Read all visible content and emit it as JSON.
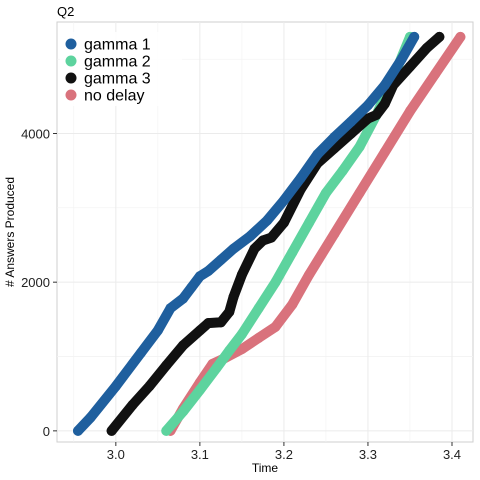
{
  "chart_data": {
    "type": "line",
    "title": "Q2",
    "xlabel": "Time",
    "ylabel": "# Answers Produced",
    "xlim": [
      2.93,
      3.425
    ],
    "ylim": [
      -150,
      5500
    ],
    "xticks": [
      3.0,
      3.1,
      3.2,
      3.3,
      3.4
    ],
    "xtick_labels": [
      "3.0",
      "3.1",
      "3.2",
      "3.3",
      "3.4"
    ],
    "yticks": [
      0,
      2000,
      4000
    ],
    "ytick_labels": [
      "0",
      "2000",
      "4000"
    ],
    "grid": true,
    "legend_position": "top-left",
    "series": [
      {
        "name": "gamma 1",
        "color": "#1f5f9e",
        "x": [
          2.955,
          2.97,
          3.0,
          3.03,
          3.05,
          3.065,
          3.08,
          3.09,
          3.1,
          3.11,
          3.125,
          3.14,
          3.16,
          3.18,
          3.2,
          3.22,
          3.24,
          3.26,
          3.28,
          3.3,
          3.32,
          3.34,
          3.355
        ],
        "y": [
          0,
          180,
          600,
          1050,
          1350,
          1650,
          1780,
          1930,
          2080,
          2150,
          2300,
          2450,
          2620,
          2830,
          3100,
          3400,
          3720,
          3950,
          4160,
          4380,
          4650,
          5000,
          5300
        ]
      },
      {
        "name": "gamma 2",
        "color": "#5dd39e",
        "x": [
          3.06,
          3.08,
          3.1,
          3.12,
          3.135,
          3.15,
          3.17,
          3.19,
          3.21,
          3.23,
          3.25,
          3.27,
          3.29,
          3.31,
          3.33,
          3.35
        ],
        "y": [
          0,
          260,
          550,
          850,
          1080,
          1300,
          1650,
          2000,
          2400,
          2800,
          3200,
          3500,
          3820,
          4250,
          4750,
          5300
        ]
      },
      {
        "name": "gamma 3",
        "color": "#111111",
        "x": [
          2.995,
          3.02,
          3.04,
          3.06,
          3.08,
          3.1,
          3.11,
          3.125,
          3.135,
          3.14,
          3.15,
          3.165,
          3.175,
          3.185,
          3.2,
          3.22,
          3.24,
          3.26,
          3.28,
          3.3,
          3.31,
          3.32,
          3.33,
          3.35,
          3.37,
          3.385
        ],
        "y": [
          0,
          350,
          600,
          880,
          1150,
          1350,
          1450,
          1460,
          1600,
          1800,
          2100,
          2450,
          2560,
          2600,
          2800,
          3250,
          3600,
          3800,
          4000,
          4200,
          4250,
          4400,
          4650,
          4900,
          5150,
          5300
        ]
      },
      {
        "name": "no delay",
        "color": "#d9727c",
        "x": [
          3.065,
          3.08,
          3.1,
          3.115,
          3.13,
          3.15,
          3.17,
          3.19,
          3.21,
          3.23,
          3.26,
          3.29,
          3.32,
          3.35,
          3.38,
          3.41
        ],
        "y": [
          0,
          300,
          650,
          900,
          980,
          1100,
          1250,
          1400,
          1700,
          2100,
          2650,
          3200,
          3750,
          4300,
          4800,
          5300
        ]
      }
    ]
  }
}
